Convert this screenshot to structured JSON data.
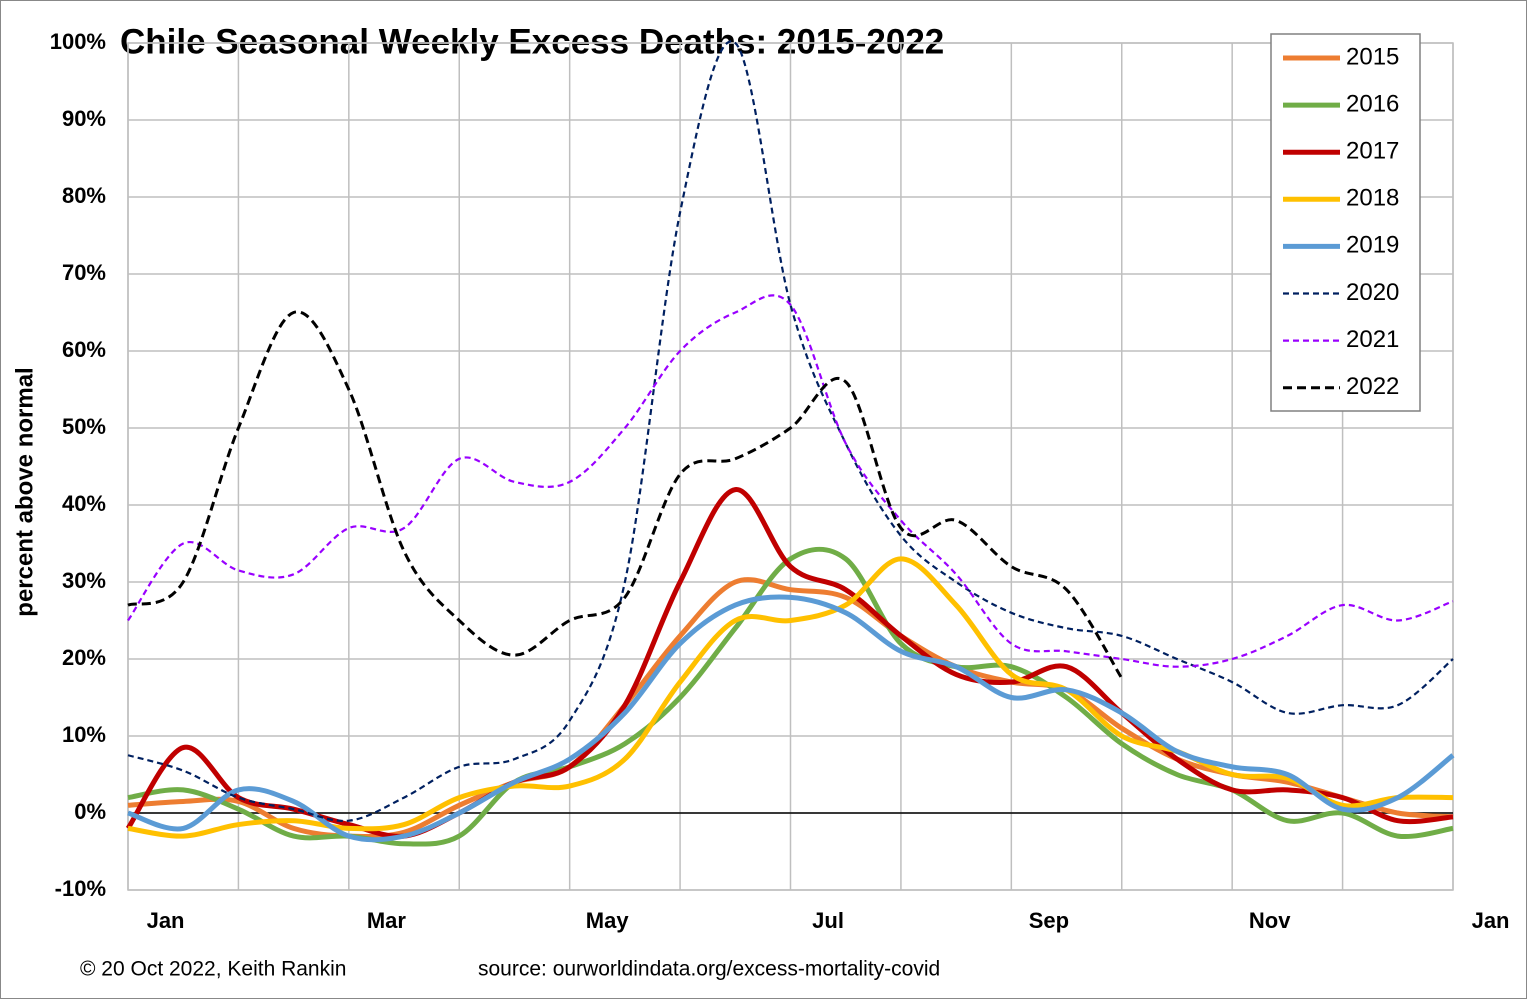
{
  "chart_data": {
    "type": "line",
    "title": "Chile Seasonal Weekly Excess Deaths: 2015-2022",
    "y_label": "percent above normal",
    "footer_left": "© 20 Oct 2022, Keith Rankin",
    "footer_right": "source: ourworldindata.org/excess-mortality-covid",
    "x": [
      0,
      0.5,
      1,
      1.5,
      2,
      2.5,
      3,
      3.5,
      4,
      4.5,
      5,
      5.5,
      6,
      6.5,
      7,
      7.5,
      8,
      8.5,
      9,
      9.5,
      10,
      10.5,
      11,
      11.5,
      12
    ],
    "xlim": [
      0,
      12
    ],
    "xticks": [
      {
        "value": 0,
        "label": "Jan"
      },
      {
        "value": 1,
        "label": null
      },
      {
        "value": 2,
        "label": "Mar"
      },
      {
        "value": 3,
        "label": null
      },
      {
        "value": 4,
        "label": "May"
      },
      {
        "value": 5,
        "label": null
      },
      {
        "value": 6,
        "label": "Jul"
      },
      {
        "value": 7,
        "label": null
      },
      {
        "value": 8,
        "label": "Sep"
      },
      {
        "value": 9,
        "label": null
      },
      {
        "value": 10,
        "label": "Nov"
      },
      {
        "value": 11,
        "label": null
      },
      {
        "value": 12,
        "label": "Jan"
      }
    ],
    "ylim": [
      -10,
      100
    ],
    "yticks": [
      {
        "value": -10,
        "label": "-10%"
      },
      {
        "value": 0,
        "label": "0%"
      },
      {
        "value": 10,
        "label": "10%"
      },
      {
        "value": 20,
        "label": "20%"
      },
      {
        "value": 30,
        "label": "30%"
      },
      {
        "value": 40,
        "label": "40%"
      },
      {
        "value": 50,
        "label": "50%"
      },
      {
        "value": 60,
        "label": "60%"
      },
      {
        "value": 70,
        "label": "70%"
      },
      {
        "value": 80,
        "label": "80%"
      },
      {
        "value": 90,
        "label": "90%"
      },
      {
        "value": 100,
        "label": "100%"
      }
    ],
    "grid": true,
    "legend": "top-right",
    "series": [
      {
        "name": "2015",
        "color": "#ed7d31",
        "dash": false,
        "values": [
          1,
          1.5,
          1.5,
          -2,
          -3,
          -2.5,
          1,
          4,
          6,
          14,
          23,
          30,
          29,
          28,
          23,
          19,
          17,
          16,
          11,
          7,
          5,
          4,
          2,
          0,
          -0.5
        ]
      },
      {
        "name": "2016",
        "color": "#70ad47",
        "dash": false,
        "values": [
          2,
          3,
          0.5,
          -3,
          -3,
          -4,
          -3,
          4,
          6,
          9,
          15,
          24,
          33,
          33,
          22,
          19,
          19,
          15,
          9,
          5,
          3,
          -1,
          0,
          -3,
          -2
        ]
      },
      {
        "name": "2017",
        "color": "#c00000",
        "dash": false,
        "values": [
          -2,
          8.5,
          2,
          0.5,
          -1.5,
          -3,
          0,
          4,
          6,
          14,
          30,
          42,
          32,
          29,
          23,
          18,
          17,
          19,
          13,
          7,
          3,
          3,
          2,
          -1,
          -0.5
        ]
      },
      {
        "name": "2018",
        "color": "#ffc000",
        "dash": false,
        "values": [
          -2,
          -3,
          -1.5,
          -1,
          -2,
          -1.5,
          2,
          3.5,
          3.5,
          7,
          17,
          25,
          25,
          27,
          33,
          27,
          18,
          16,
          10,
          8,
          5,
          4.5,
          1,
          2,
          2
        ]
      },
      {
        "name": "2019",
        "color": "#5b9bd5",
        "dash": false,
        "values": [
          0,
          -2,
          3,
          1.5,
          -3,
          -3,
          0,
          4,
          7,
          13,
          22,
          27,
          28,
          26,
          21,
          19,
          15,
          16,
          13,
          8,
          6,
          5,
          0.5,
          2,
          7.5
        ]
      },
      {
        "name": "2020",
        "color": "#002060",
        "dash": true,
        "values": [
          7.5,
          5.5,
          2,
          0.5,
          -1,
          2,
          6,
          7,
          12,
          30,
          78,
          100,
          66,
          48,
          36,
          30,
          26,
          24,
          23,
          20,
          17,
          13,
          14,
          14,
          20
        ]
      },
      {
        "name": "2021",
        "color": "#9900ff",
        "dash": true,
        "values": [
          25,
          35,
          31.5,
          31,
          37,
          37,
          46,
          43,
          43,
          50,
          60,
          65,
          66,
          48,
          38,
          31,
          22,
          21,
          20,
          19,
          20,
          23,
          27,
          25,
          27.5
        ]
      },
      {
        "name": "2022",
        "color": "#000000",
        "dash": true,
        "values": [
          27,
          30,
          50,
          65,
          55,
          34,
          25,
          20.5,
          25,
          28,
          44,
          46,
          50,
          56,
          37,
          38,
          32,
          29,
          17.5,
          null,
          null,
          null,
          null,
          null,
          null
        ]
      }
    ]
  }
}
